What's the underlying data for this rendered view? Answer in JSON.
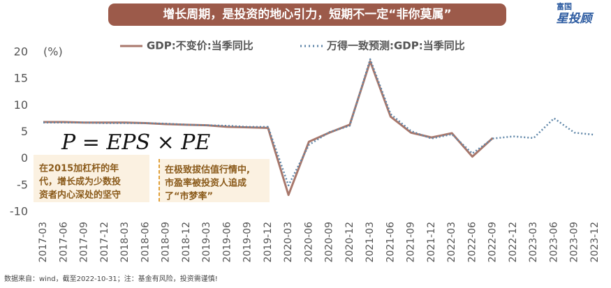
{
  "chart_data": {
    "type": "line",
    "title": "增长周期，是投资的地心引力，短期不一定“非你莫属”",
    "y_unit": "(%)",
    "categories": [
      "2017-03",
      "2017-06",
      "2017-09",
      "2017-12",
      "2018-03",
      "2018-06",
      "2018-09",
      "2018-12",
      "2019-03",
      "2019-06",
      "2019-09",
      "2019-12",
      "2020-03",
      "2020-06",
      "2020-09",
      "2020-12",
      "2021-03",
      "2021-06",
      "2021-09",
      "2021-12",
      "2022-03",
      "2022-06",
      "2022-09",
      "2022-12",
      "2023-03",
      "2023-06",
      "2023-09",
      "2023-12"
    ],
    "series": [
      {
        "name": "GDP:不变价:当季同比",
        "color": "#a8776b",
        "style": "solid",
        "values": [
          6.9,
          6.9,
          6.8,
          6.8,
          6.8,
          6.7,
          6.5,
          6.4,
          6.3,
          6.0,
          5.9,
          5.8,
          -6.8,
          3.2,
          4.9,
          6.4,
          18.3,
          7.9,
          4.9,
          4.0,
          4.8,
          0.4,
          3.9,
          null,
          null,
          null,
          null,
          null
        ]
      },
      {
        "name": "万得一致预测:GDP:当季同比",
        "color": "#5f86a8",
        "style": "dotted",
        "values": [
          6.8,
          6.8,
          6.8,
          6.7,
          6.7,
          6.7,
          6.6,
          6.4,
          6.3,
          6.2,
          6.0,
          6.0,
          -5.0,
          2.6,
          5.0,
          6.2,
          18.7,
          8.4,
          5.2,
          3.8,
          4.6,
          1.0,
          3.8,
          4.2,
          3.9,
          7.6,
          4.9,
          4.5
        ]
      }
    ],
    "ylim": [
      -10,
      20
    ],
    "yticks": [
      -10,
      -5,
      0,
      5,
      10,
      15,
      20
    ],
    "grid": false,
    "legend": "top",
    "formula": "P = EPS × PE",
    "annotations": [
      [
        "在2015加杠杆的年",
        "代，增长成为少数投",
        "资者内心深处的坚守"
      ],
      [
        "在极致拔估值行情中,",
        "市盈率被投资人追成",
        "了“市梦率”"
      ]
    ],
    "source": "数据来自：wind，截至2022-10-31；注：基金有风险，投资需谨慎!"
  },
  "branding": {
    "top": "富国",
    "main": "星投顾"
  }
}
